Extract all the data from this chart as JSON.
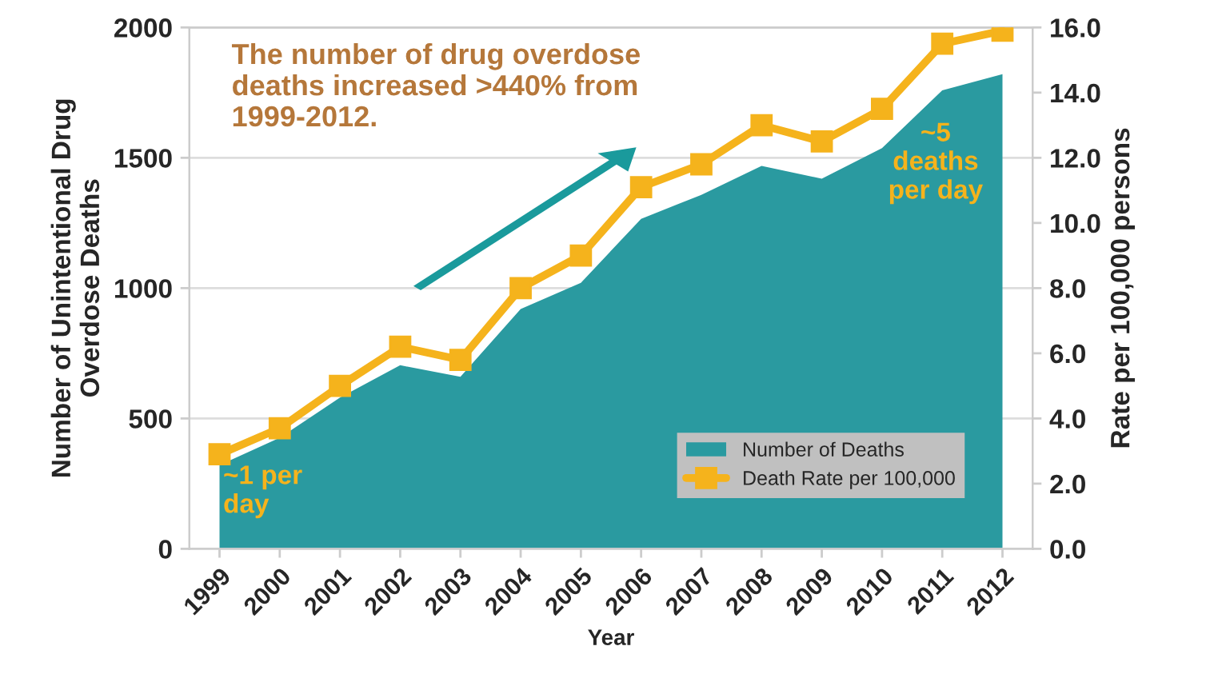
{
  "chart_data": {
    "type": "area",
    "categories": [
      "1999",
      "2000",
      "2001",
      "2002",
      "2003",
      "2004",
      "2005",
      "2006",
      "2007",
      "2008",
      "2009",
      "2010",
      "2011",
      "2012"
    ],
    "series": [
      {
        "name": "Number of Deaths",
        "color": "#2a9aa0",
        "values": [
          321,
          426,
          580,
          704,
          660,
          920,
          1020,
          1266,
          1358,
          1469,
          1420,
          1537,
          1759,
          1821
        ]
      },
      {
        "name": "Death Rate per 100,000",
        "type": "line",
        "axis": "y2",
        "color": "#f5b31c",
        "marker": "square",
        "values": [
          2.9,
          3.7,
          5.0,
          6.2,
          5.8,
          8.0,
          9.0,
          11.1,
          11.8,
          13.0,
          12.5,
          13.5,
          15.5,
          15.9
        ]
      }
    ],
    "xlabel": "Year",
    "ylabel": "Number of Unintentional Drug\nOverdose Deaths",
    "y2label": "Rate per 100,000 persons",
    "ylim": [
      0,
      2000
    ],
    "yticks": [
      0,
      500,
      1000,
      1500,
      2000
    ],
    "y2lim": [
      0,
      16
    ],
    "y2ticks": [
      {
        "value": 0,
        "label": "0.0"
      },
      {
        "value": 2,
        "label": "2.0"
      },
      {
        "value": 4,
        "label": "4.0"
      },
      {
        "value": 6,
        "label": "6.0"
      },
      {
        "value": 8,
        "label": "8.0"
      },
      {
        "value": 10,
        "label": "10.0"
      },
      {
        "value": 12,
        "label": "12.0"
      },
      {
        "value": 14,
        "label": "14.0"
      },
      {
        "value": 16,
        "label": "16.0"
      }
    ],
    "grid": "y",
    "legend": "bottom right",
    "annotations": [
      "The number of drug overdose\ndeaths increased >440% from\n1999-2012.",
      "~1 per\nday",
      "~5\ndeaths\nper day"
    ]
  }
}
